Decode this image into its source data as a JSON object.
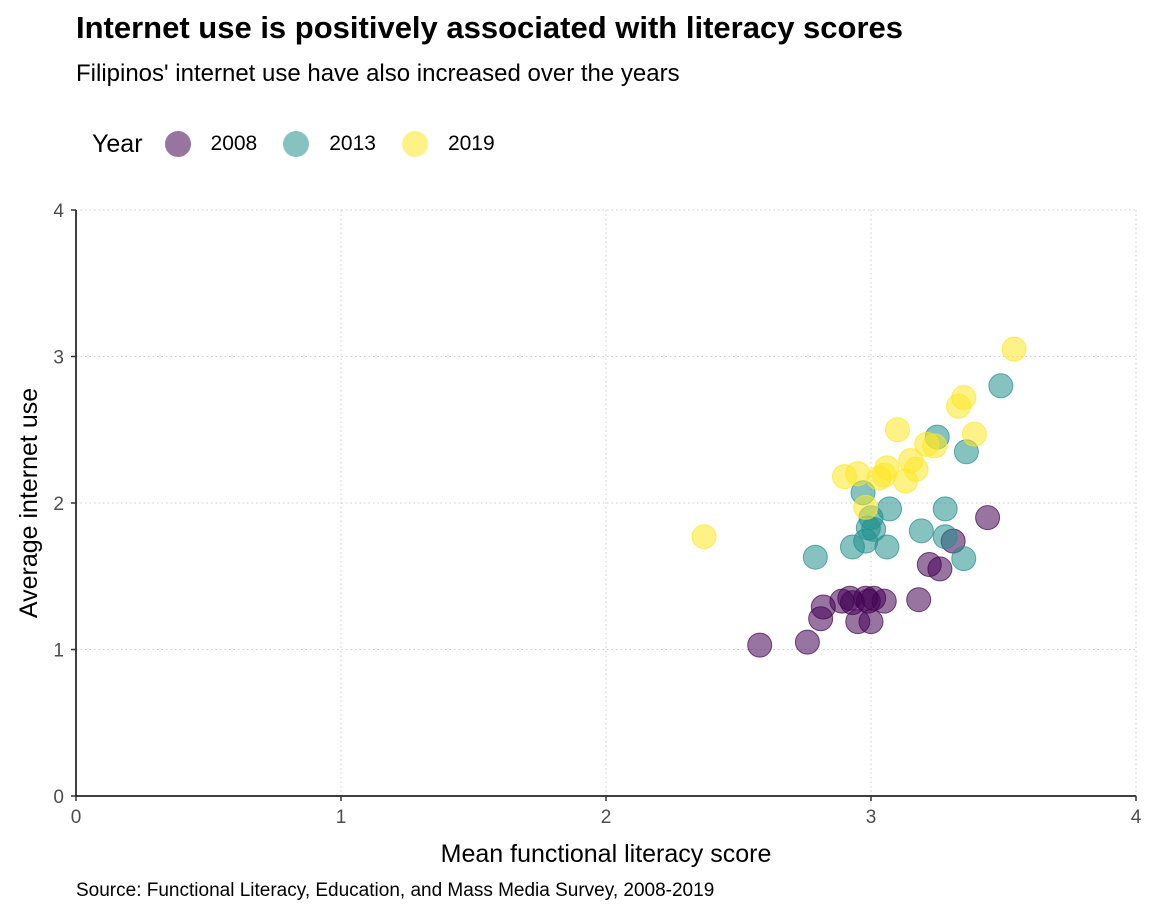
{
  "title": "Internet use is positively associated with literacy scores",
  "subtitle": "Filipinos' internet use have also increased over the years",
  "caption": "Source: Functional Literacy, Education, and Mass Media Survey, 2008-2019",
  "legend": {
    "title": "Year",
    "placement": "top-left",
    "items": [
      {
        "label": "2008",
        "color": "#440154"
      },
      {
        "label": "2013",
        "color": "#21908C"
      },
      {
        "label": "2019",
        "color": "#FDE725"
      }
    ]
  },
  "chart_data": {
    "type": "scatter",
    "xlabel": "Mean functional literacy score",
    "ylabel": "Average internet use",
    "xlim": [
      0,
      4
    ],
    "ylim": [
      0,
      4
    ],
    "xticks": [
      "0",
      "1",
      "2",
      "3",
      "4"
    ],
    "yticks": [
      "0",
      "1",
      "2",
      "3",
      "4"
    ],
    "grid": "dotted major gridlines",
    "point_opacity": 0.55,
    "series": [
      {
        "name": "2008",
        "color": "#440154",
        "points": [
          [
            2.58,
            1.03
          ],
          [
            2.76,
            1.05
          ],
          [
            2.81,
            1.21
          ],
          [
            2.82,
            1.29
          ],
          [
            2.89,
            1.33
          ],
          [
            2.92,
            1.35
          ],
          [
            2.93,
            1.32
          ],
          [
            2.95,
            1.19
          ],
          [
            2.98,
            1.35
          ],
          [
            2.99,
            1.33
          ],
          [
            3.0,
            1.19
          ],
          [
            3.01,
            1.35
          ],
          [
            3.05,
            1.33
          ],
          [
            3.18,
            1.34
          ],
          [
            3.22,
            1.58
          ],
          [
            3.26,
            1.55
          ],
          [
            3.31,
            1.74
          ],
          [
            3.44,
            1.9
          ]
        ]
      },
      {
        "name": "2013",
        "color": "#21908C",
        "points": [
          [
            2.79,
            1.63
          ],
          [
            2.93,
            1.7
          ],
          [
            2.97,
            2.07
          ],
          [
            2.98,
            1.74
          ],
          [
            2.99,
            1.83
          ],
          [
            3.0,
            1.9
          ],
          [
            3.01,
            1.82
          ],
          [
            3.06,
            1.7
          ],
          [
            3.07,
            1.96
          ],
          [
            3.19,
            1.81
          ],
          [
            3.25,
            2.45
          ],
          [
            3.28,
            1.96
          ],
          [
            3.28,
            1.77
          ],
          [
            3.35,
            1.62
          ],
          [
            3.36,
            2.35
          ],
          [
            3.49,
            2.8
          ]
        ]
      },
      {
        "name": "2019",
        "color": "#FDE725",
        "points": [
          [
            2.37,
            1.77
          ],
          [
            2.9,
            2.18
          ],
          [
            2.95,
            2.2
          ],
          [
            2.98,
            1.97
          ],
          [
            3.03,
            2.17
          ],
          [
            3.05,
            2.19
          ],
          [
            3.06,
            2.24
          ],
          [
            3.1,
            2.5
          ],
          [
            3.13,
            2.15
          ],
          [
            3.15,
            2.29
          ],
          [
            3.17,
            2.23
          ],
          [
            3.21,
            2.4
          ],
          [
            3.24,
            2.39
          ],
          [
            3.33,
            2.66
          ],
          [
            3.35,
            2.72
          ],
          [
            3.39,
            2.47
          ],
          [
            3.54,
            3.05
          ]
        ]
      }
    ]
  }
}
